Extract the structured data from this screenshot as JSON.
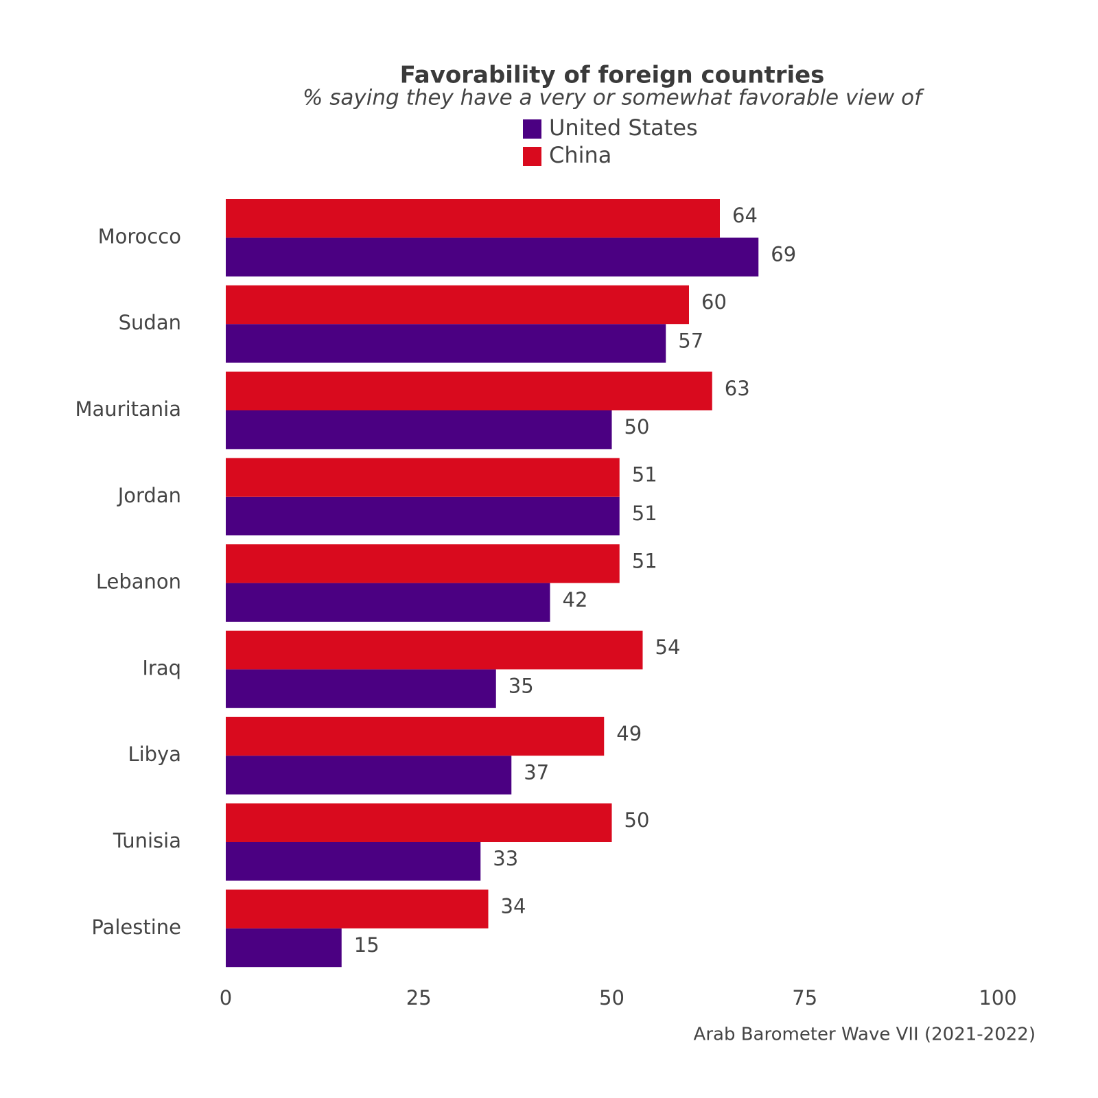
{
  "chart_data": {
    "type": "hbar",
    "title": "Favorability of foreign countries",
    "subtitle": "% saying they have a very or somewhat favorable view of",
    "source": "Arab Barometer Wave VII (2021-2022)",
    "categories": [
      "Morocco",
      "Sudan",
      "Mauritania",
      "Jordan",
      "Lebanon",
      "Iraq",
      "Libya",
      "Tunisia",
      "Palestine"
    ],
    "series": [
      {
        "name": "United States",
        "color": "#4b0082",
        "values": [
          69,
          57,
          50,
          51,
          42,
          35,
          37,
          33,
          15
        ]
      },
      {
        "name": "China",
        "color": "#d90a1e",
        "values": [
          64,
          60,
          63,
          51,
          51,
          54,
          49,
          50,
          34
        ]
      }
    ],
    "xlim": [
      0,
      100
    ],
    "xticks": [
      0,
      25,
      50,
      75,
      100
    ],
    "grid": false
  }
}
